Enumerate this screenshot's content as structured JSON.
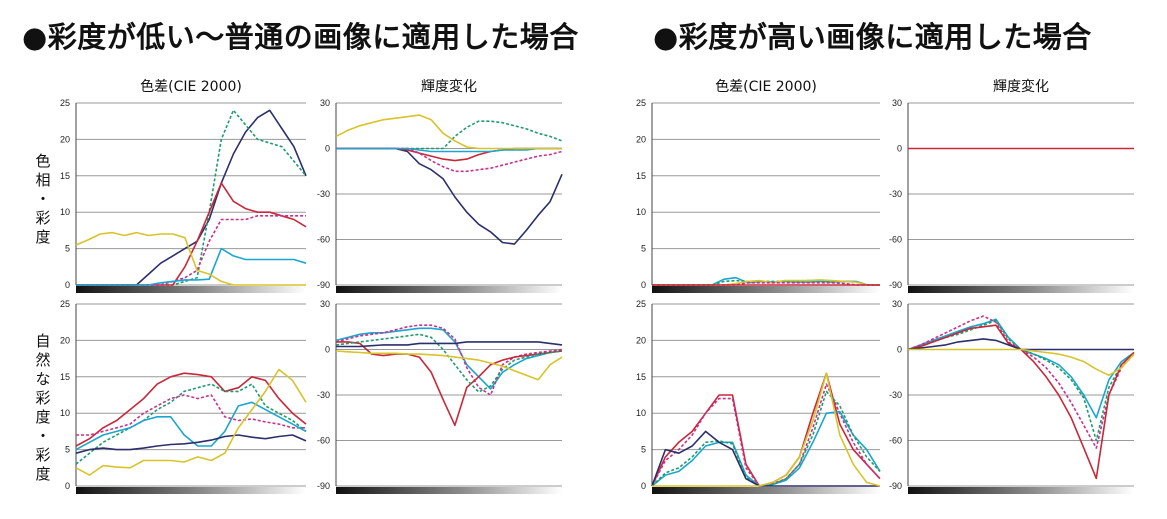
{
  "headings": {
    "left": "●彩度が低い〜普通の画像に適用した場合",
    "right": "●彩度が高い画像に適用した場合"
  },
  "column_headers": {
    "color_diff": "色差(CIE 2000)",
    "luminance": "輝度変化"
  },
  "row_labels": {
    "top": "色\n相\n・\n彩\n度",
    "bottom": "自\n然\nな\n彩\n度\n・\n彩\n度"
  },
  "colors": {
    "navy": "#2b2f6b",
    "green": "#1e9c6e",
    "red": "#c8283a",
    "cyan": "#1aa6cf",
    "magenta": "#c8318e",
    "yellow": "#d9c32a",
    "grid": "#9a9a9a"
  },
  "chart_data": [
    {
      "id": "low-hue-colordiff",
      "type": "line",
      "title": "色差(CIE 2000)",
      "ylim": [
        0,
        25
      ],
      "yticks": [
        0,
        5,
        10,
        15,
        20,
        25
      ],
      "series": [
        {
          "color": "navy",
          "dash": false,
          "values": [
            0,
            0,
            0,
            0,
            0,
            0,
            1.5,
            3,
            4,
            5,
            6,
            9,
            14,
            18,
            21,
            23,
            24,
            21.5,
            19,
            15
          ]
        },
        {
          "color": "green",
          "dash": true,
          "values": [
            0,
            0,
            0,
            0,
            0,
            0,
            0,
            0,
            0,
            0.5,
            1,
            10,
            20,
            24,
            22,
            20,
            19.5,
            19,
            17,
            15
          ]
        },
        {
          "color": "red",
          "dash": false,
          "values": [
            0,
            0,
            0,
            0,
            0,
            0,
            0,
            0,
            0,
            2.5,
            6,
            10,
            14,
            11.5,
            10.5,
            10,
            10,
            9.5,
            9,
            8
          ]
        },
        {
          "color": "magenta",
          "dash": true,
          "values": [
            0,
            0,
            0,
            0,
            0,
            0,
            0,
            0,
            0.5,
            1,
            2,
            6,
            9,
            9,
            9,
            9.5,
            9.5,
            9.5,
            9.5,
            9.5
          ]
        },
        {
          "color": "cyan",
          "dash": false,
          "values": [
            0,
            0,
            0,
            0,
            0,
            0,
            0,
            0.3,
            0.5,
            0.7,
            0.7,
            0.8,
            5,
            4,
            3.5,
            3.5,
            3.5,
            3.5,
            3.5,
            3
          ]
        },
        {
          "color": "yellow",
          "dash": false,
          "values": [
            5.5,
            6.2,
            7,
            7.2,
            6.8,
            7.2,
            6.8,
            7,
            7,
            6.5,
            2,
            1.5,
            0.5,
            0,
            0,
            0,
            0,
            0,
            0,
            0
          ]
        }
      ]
    },
    {
      "id": "low-hue-luminance",
      "type": "line",
      "title": "輝度変化",
      "ylim": [
        -90,
        30
      ],
      "yticks": [
        30,
        0,
        -30,
        -60,
        -90
      ],
      "series": [
        {
          "color": "navy",
          "dash": false,
          "values": [
            0,
            0,
            0,
            0,
            0,
            0,
            -2,
            -10,
            -14,
            -20,
            -32,
            -42,
            -50,
            -55,
            -62,
            -63,
            -54,
            -44,
            -35,
            -17
          ]
        },
        {
          "color": "green",
          "dash": true,
          "values": [
            0,
            0,
            0,
            0,
            0,
            0,
            0,
            0,
            0,
            0,
            8,
            14,
            18,
            18,
            17,
            15,
            13,
            10,
            8,
            5
          ]
        },
        {
          "color": "red",
          "dash": false,
          "values": [
            0,
            0,
            0,
            0,
            0,
            0,
            -1,
            -3,
            -5,
            -7,
            -8,
            -7,
            -4,
            -2,
            -1,
            0,
            0,
            0,
            0,
            0
          ]
        },
        {
          "color": "magenta",
          "dash": true,
          "values": [
            0,
            0,
            0,
            0,
            0,
            0,
            0,
            -3,
            -8,
            -12,
            -15,
            -15,
            -14,
            -13,
            -11,
            -9,
            -7,
            -5,
            -4,
            -2
          ]
        },
        {
          "color": "cyan",
          "dash": false,
          "values": [
            0,
            0,
            0,
            0,
            0,
            0,
            0,
            -1,
            -2,
            -2,
            -2,
            -2,
            -2,
            -2,
            -1,
            -1,
            -1,
            0,
            0,
            0
          ]
        },
        {
          "color": "yellow",
          "dash": false,
          "values": [
            8,
            12,
            15,
            17,
            19,
            20,
            21,
            22,
            19,
            10,
            5,
            1,
            0,
            0,
            0,
            0,
            0,
            0,
            0,
            0
          ]
        }
      ]
    },
    {
      "id": "low-natural-colordiff",
      "type": "line",
      "title": "",
      "ylim": [
        0,
        25
      ],
      "yticks": [
        0,
        5,
        10,
        15,
        20,
        25
      ],
      "series": [
        {
          "color": "red",
          "dash": false,
          "values": [
            5.5,
            6.5,
            8,
            9,
            10.5,
            12,
            14,
            15,
            15.5,
            15.3,
            15,
            13,
            13.5,
            15,
            14.5,
            12,
            10,
            8.5
          ]
        },
        {
          "color": "green",
          "dash": true,
          "values": [
            3,
            4.5,
            6,
            7,
            8,
            9,
            10.5,
            11.5,
            13,
            13.5,
            14,
            13,
            13,
            14,
            11,
            10,
            9,
            7.5
          ]
        },
        {
          "color": "magenta",
          "dash": true,
          "values": [
            7,
            7,
            7.5,
            8,
            8.5,
            10,
            11,
            12,
            12.5,
            12,
            12.5,
            9.5,
            9,
            9.2,
            8.8,
            8.5,
            8,
            8
          ]
        },
        {
          "color": "cyan",
          "dash": false,
          "values": [
            5,
            6,
            7,
            7.5,
            8,
            9,
            9.5,
            9.5,
            7,
            5.5,
            5.5,
            7.5,
            11,
            11.5,
            10.5,
            9.5,
            8.5,
            7.5
          ]
        },
        {
          "color": "navy",
          "dash": false,
          "values": [
            4.5,
            5,
            5.2,
            5,
            5,
            5.2,
            5.5,
            5.7,
            5.8,
            6,
            6.3,
            6.8,
            7,
            6.7,
            6.5,
            6.8,
            7,
            6.2
          ]
        },
        {
          "color": "yellow",
          "dash": false,
          "values": [
            2.5,
            1.5,
            2.8,
            2.6,
            2.5,
            3.5,
            3.5,
            3.5,
            3.3,
            4,
            3.5,
            4.5,
            8,
            10.5,
            13,
            16,
            14.5,
            11.5
          ]
        }
      ]
    },
    {
      "id": "low-natural-luminance",
      "type": "line",
      "title": "",
      "ylim": [
        -90,
        30
      ],
      "yticks": [
        30,
        0,
        -30,
        -60,
        -90
      ],
      "series": [
        {
          "color": "cyan",
          "dash": false,
          "values": [
            6,
            8,
            10,
            11,
            11,
            12,
            13,
            14,
            14,
            13,
            5,
            -10,
            -18,
            -26,
            -15,
            -10,
            -6,
            -4,
            -2,
            -1
          ]
        },
        {
          "color": "magenta",
          "dash": true,
          "values": [
            5,
            7,
            9,
            10,
            11,
            13,
            15,
            16,
            16,
            14,
            7,
            -12,
            -25,
            -30,
            -10,
            -5,
            -3,
            -2,
            -1,
            0
          ]
        },
        {
          "color": "red",
          "dash": false,
          "values": [
            5,
            5,
            4,
            -3,
            -4,
            -3,
            -3,
            -5,
            -15,
            -33,
            -50,
            -25,
            -18,
            -10,
            -7,
            -5,
            -4,
            -3,
            -2,
            -1
          ]
        },
        {
          "color": "green",
          "dash": true,
          "values": [
            3,
            4,
            5,
            6,
            7,
            8,
            9,
            10,
            8,
            0,
            -10,
            -20,
            -28,
            -24,
            -13,
            -7,
            -5,
            -3,
            -2,
            -1
          ]
        },
        {
          "color": "navy",
          "dash": false,
          "values": [
            2,
            2,
            2,
            2.5,
            3,
            3,
            3,
            4,
            4,
            4,
            4,
            5,
            5,
            5,
            5,
            5,
            5,
            5,
            4,
            3
          ]
        },
        {
          "color": "yellow",
          "dash": false,
          "values": [
            -1,
            -1.5,
            -2,
            -2.5,
            -2.5,
            -2.5,
            -3,
            -3,
            -3.5,
            -4,
            -5,
            -6,
            -7,
            -9,
            -11,
            -14,
            -17,
            -20,
            -10,
            -5
          ]
        }
      ]
    },
    {
      "id": "high-hue-colordiff",
      "type": "line",
      "title": "色差(CIE 2000)",
      "ylim": [
        0,
        25
      ],
      "yticks": [
        0,
        5,
        10,
        15,
        20,
        25
      ],
      "series": [
        {
          "color": "cyan",
          "dash": false,
          "values": [
            0,
            0,
            0,
            0,
            0,
            0,
            0.8,
            1,
            0.3,
            0.5,
            0.4,
            0.5,
            0.4,
            0.4,
            0.5,
            0.4,
            0.5,
            0.5,
            0,
            0
          ]
        },
        {
          "color": "green",
          "dash": true,
          "values": [
            0,
            0,
            0,
            0,
            0,
            0,
            0.5,
            0.6,
            0.5,
            0.5,
            0.5,
            0.5,
            0.5,
            0.6,
            0.6,
            0.5,
            0.5,
            0.4,
            0,
            0
          ]
        },
        {
          "color": "yellow",
          "dash": false,
          "values": [
            0,
            0,
            0,
            0,
            0,
            0,
            0,
            0.2,
            0.5,
            0.6,
            0.3,
            0.6,
            0.6,
            0.6,
            0.7,
            0.6,
            0.5,
            0.4,
            0,
            0
          ]
        },
        {
          "color": "magenta",
          "dash": true,
          "values": [
            0,
            0,
            0,
            0,
            0,
            0,
            0,
            0,
            0.3,
            0.3,
            0.3,
            0.3,
            0.3,
            0.3,
            0.3,
            0.3,
            0.2,
            0,
            0,
            0
          ]
        },
        {
          "color": "red",
          "dash": false,
          "values": [
            0,
            0,
            0,
            0,
            0,
            0,
            0,
            0,
            0,
            0,
            0,
            0,
            0,
            0,
            0,
            0,
            0,
            0,
            0,
            0
          ]
        }
      ]
    },
    {
      "id": "high-hue-luminance",
      "type": "line",
      "title": "輝度変化",
      "ylim": [
        -90,
        30
      ],
      "yticks": [
        30,
        0,
        -30,
        -60,
        -90
      ],
      "series": [
        {
          "color": "red",
          "dash": false,
          "values": [
            0,
            0,
            0,
            0,
            0,
            0,
            0,
            0,
            0,
            0,
            0,
            0,
            0,
            0,
            0,
            0,
            0,
            0,
            0,
            0
          ]
        }
      ]
    },
    {
      "id": "high-natural-colordiff",
      "type": "line",
      "title": "",
      "ylim": [
        0,
        25
      ],
      "yticks": [
        0,
        5,
        10,
        15,
        20,
        25
      ],
      "series": [
        {
          "color": "red",
          "dash": false,
          "values": [
            0,
            4,
            6,
            7.5,
            10,
            12.5,
            12.5,
            3,
            0,
            0.5,
            1.5,
            4,
            10,
            15.5,
            8.5,
            5,
            3,
            1
          ]
        },
        {
          "color": "magenta",
          "dash": true,
          "values": [
            0,
            3.5,
            5,
            7,
            10,
            12,
            12,
            2.5,
            0,
            0.3,
            1,
            3,
            8,
            14,
            10,
            6,
            3,
            1
          ]
        },
        {
          "color": "cyan",
          "dash": false,
          "values": [
            0,
            1.5,
            2,
            3.5,
            5.5,
            6,
            6,
            1.5,
            0,
            0.2,
            0.8,
            2.5,
            6,
            10,
            10.2,
            7,
            5,
            2
          ]
        },
        {
          "color": "green",
          "dash": true,
          "values": [
            0,
            1.8,
            2.5,
            4,
            6,
            6.2,
            5.8,
            1.2,
            0,
            0.2,
            1,
            3,
            7,
            13,
            11,
            7,
            4,
            2
          ]
        },
        {
          "color": "navy",
          "dash": false,
          "values": [
            0,
            5,
            4.5,
            5.5,
            7.5,
            6,
            5,
            1,
            0,
            0,
            0,
            0,
            0,
            0,
            0,
            0,
            0,
            0
          ]
        },
        {
          "color": "yellow",
          "dash": false,
          "values": [
            0,
            0,
            0,
            0,
            0,
            0,
            0,
            0,
            0,
            0.5,
            1.5,
            4,
            9,
            15.5,
            7,
            3,
            0.5,
            0
          ]
        }
      ]
    },
    {
      "id": "high-natural-luminance",
      "type": "line",
      "title": "",
      "ylim": [
        -90,
        30
      ],
      "yticks": [
        30,
        0,
        -30,
        -60,
        -90
      ],
      "series": [
        {
          "color": "cyan",
          "dash": false,
          "values": [
            0,
            3,
            6,
            9,
            12,
            15,
            17,
            20,
            8,
            0,
            -3,
            -6,
            -10,
            -18,
            -30,
            -45,
            -20,
            -8,
            -2
          ]
        },
        {
          "color": "green",
          "dash": true,
          "values": [
            0,
            2,
            5,
            8,
            10,
            13,
            16,
            19,
            7,
            0,
            -3,
            -7,
            -12,
            -20,
            -32,
            -60,
            -25,
            -10,
            -3
          ]
        },
        {
          "color": "magenta",
          "dash": true,
          "values": [
            0,
            3,
            7,
            11,
            15,
            19,
            22,
            18,
            5,
            0,
            -5,
            -12,
            -22,
            -35,
            -50,
            -65,
            -30,
            -12,
            -3
          ]
        },
        {
          "color": "red",
          "dash": false,
          "values": [
            0,
            2,
            5,
            8,
            11,
            14,
            15,
            16,
            4,
            0,
            -8,
            -18,
            -30,
            -45,
            -65,
            -85,
            -30,
            -10,
            -2
          ]
        },
        {
          "color": "navy",
          "dash": false,
          "values": [
            0,
            1,
            2,
            3,
            5,
            6,
            7,
            6,
            3,
            0,
            0,
            0,
            0,
            0,
            0,
            0,
            0,
            0,
            0
          ]
        },
        {
          "color": "yellow",
          "dash": false,
          "values": [
            0,
            0,
            0,
            0,
            0,
            0,
            0,
            0,
            0,
            0,
            -1,
            -2,
            -3,
            -5,
            -8,
            -13,
            -17,
            -12,
            -3
          ]
        }
      ]
    }
  ]
}
